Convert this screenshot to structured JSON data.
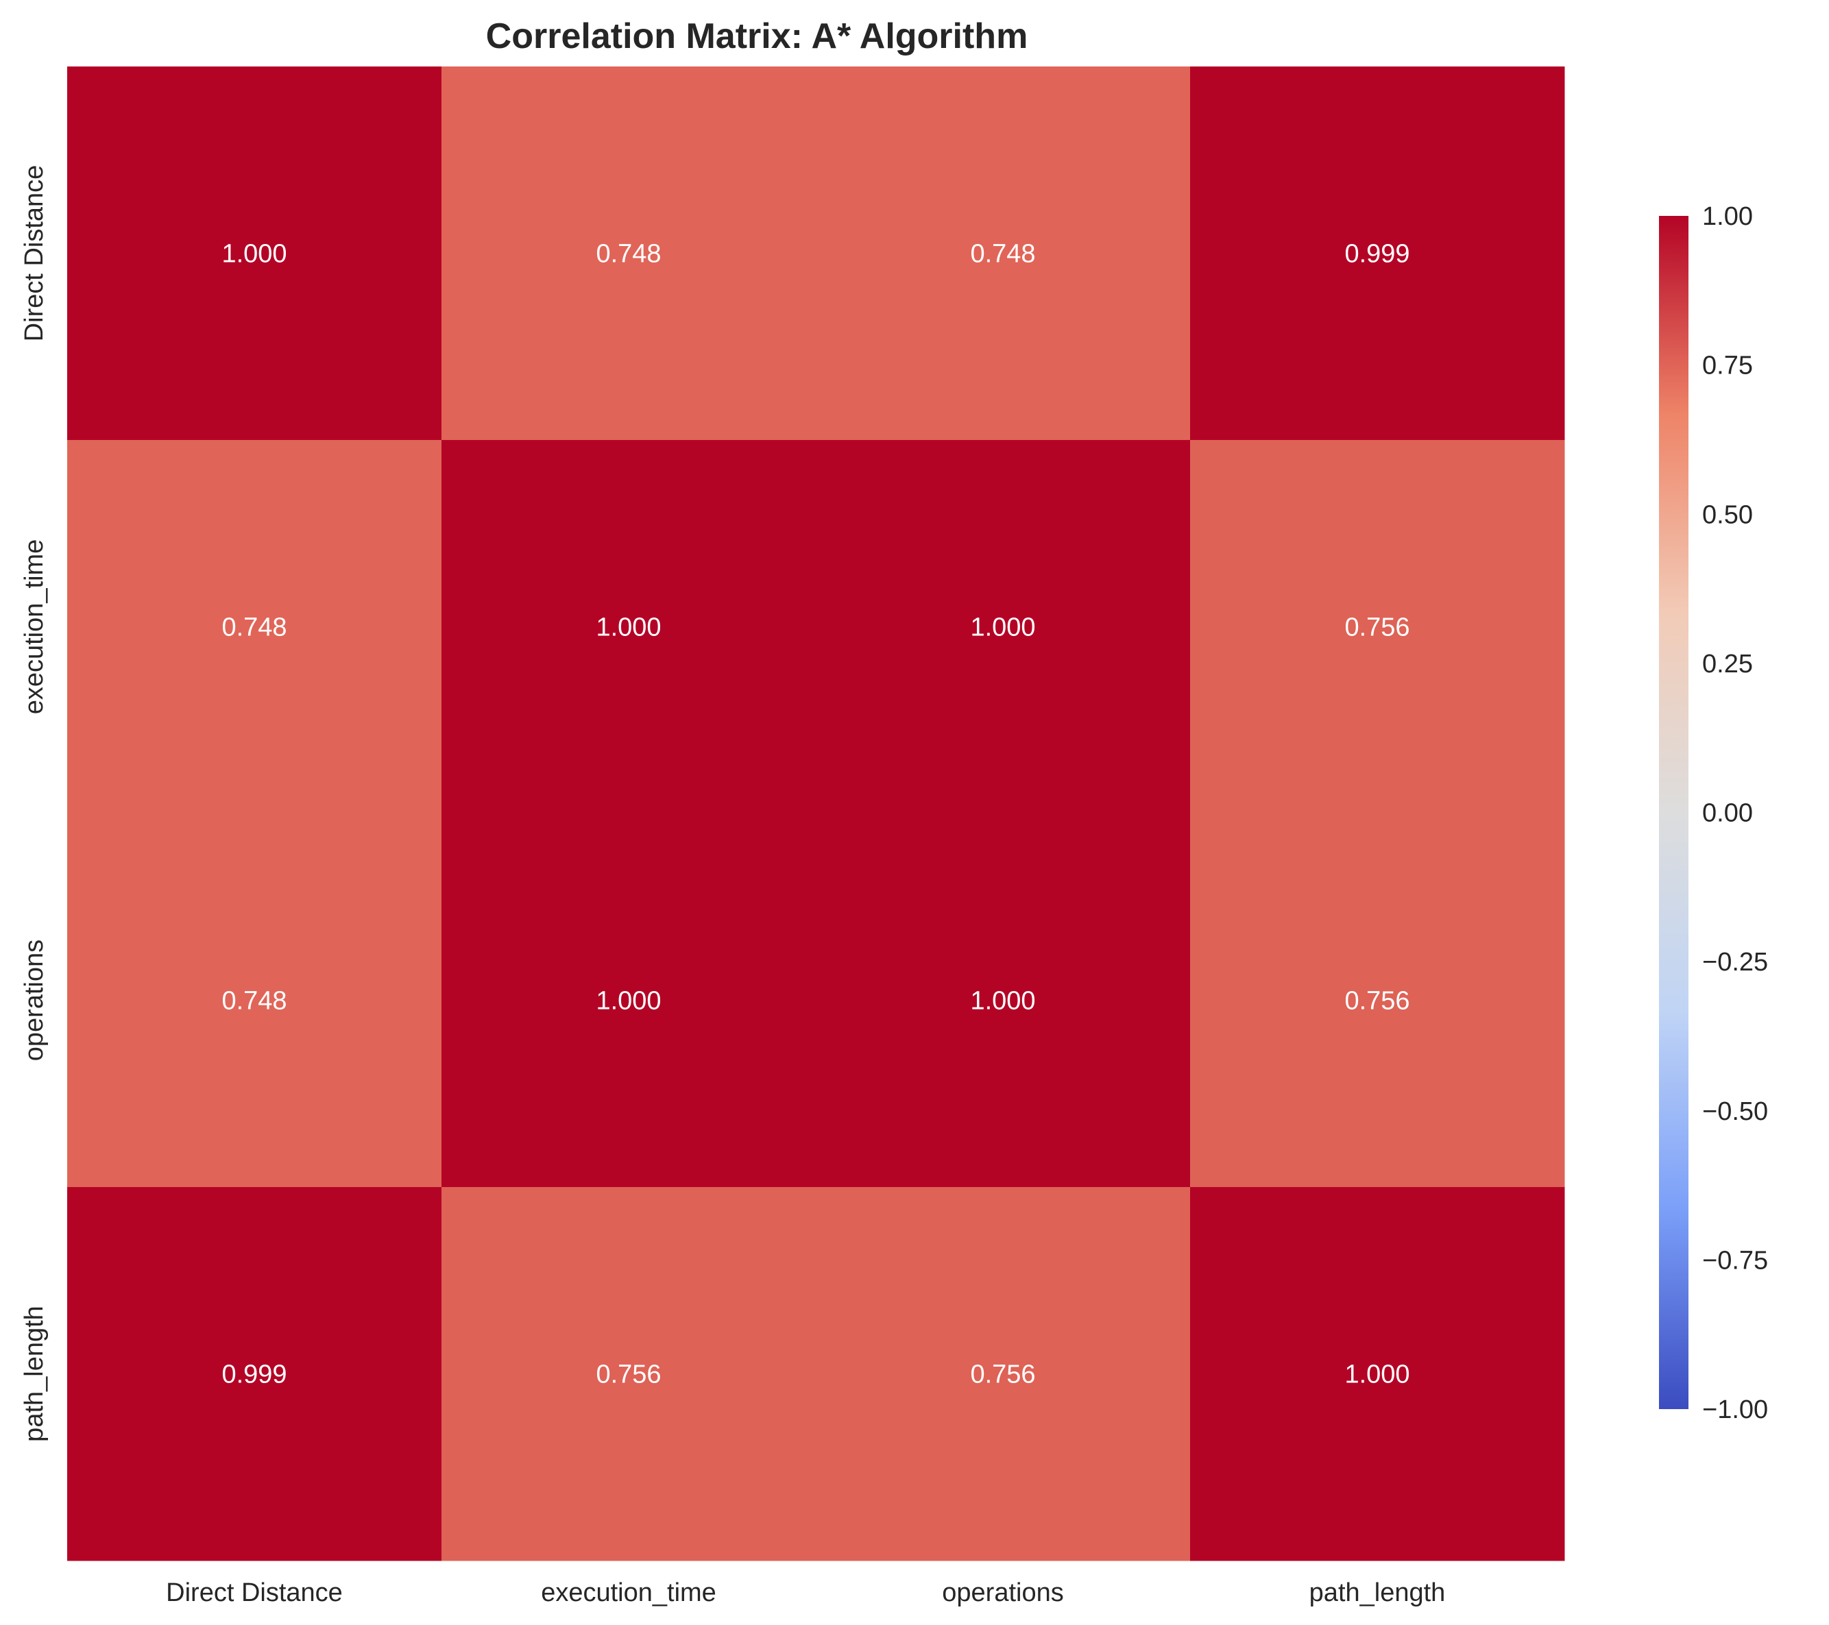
{
  "chart_data": {
    "type": "heatmap",
    "title": "Correlation Matrix: A* Algorithm",
    "x_categories": [
      "Direct Distance",
      "execution_time",
      "operations",
      "path_length"
    ],
    "y_categories": [
      "Direct Distance",
      "execution_time",
      "operations",
      "path_length"
    ],
    "values": [
      [
        1.0,
        0.748,
        0.748,
        0.999
      ],
      [
        0.748,
        1.0,
        1.0,
        0.756
      ],
      [
        0.748,
        1.0,
        1.0,
        0.756
      ],
      [
        0.999,
        0.756,
        0.756,
        1.0
      ]
    ],
    "cell_labels": [
      [
        "1.000",
        "0.748",
        "0.748",
        "0.999"
      ],
      [
        "0.748",
        "1.000",
        "1.000",
        "0.756"
      ],
      [
        "0.748",
        "1.000",
        "1.000",
        "0.756"
      ],
      [
        "0.999",
        "0.756",
        "0.756",
        "1.000"
      ]
    ],
    "colormap": "coolwarm",
    "colorbar": {
      "range": [
        -1.0,
        1.0
      ],
      "ticks": [
        1.0,
        0.75,
        0.5,
        0.25,
        0.0,
        -0.25,
        -0.5,
        -0.75,
        -1.0
      ],
      "tick_labels": [
        "1.00",
        "0.75",
        "0.50",
        "0.25",
        "0.00",
        "−0.25",
        "−0.50",
        "−0.75",
        "−1.00"
      ],
      "placement": "right"
    },
    "colors": {
      "cmap_stops": [
        "#3b4cc0",
        "#7b9ff9",
        "#c0d4f5",
        "#dddddd",
        "#f2cbb7",
        "#ee8468",
        "#b40426"
      ]
    },
    "grid": false,
    "xlabel": "",
    "ylabel": ""
  }
}
